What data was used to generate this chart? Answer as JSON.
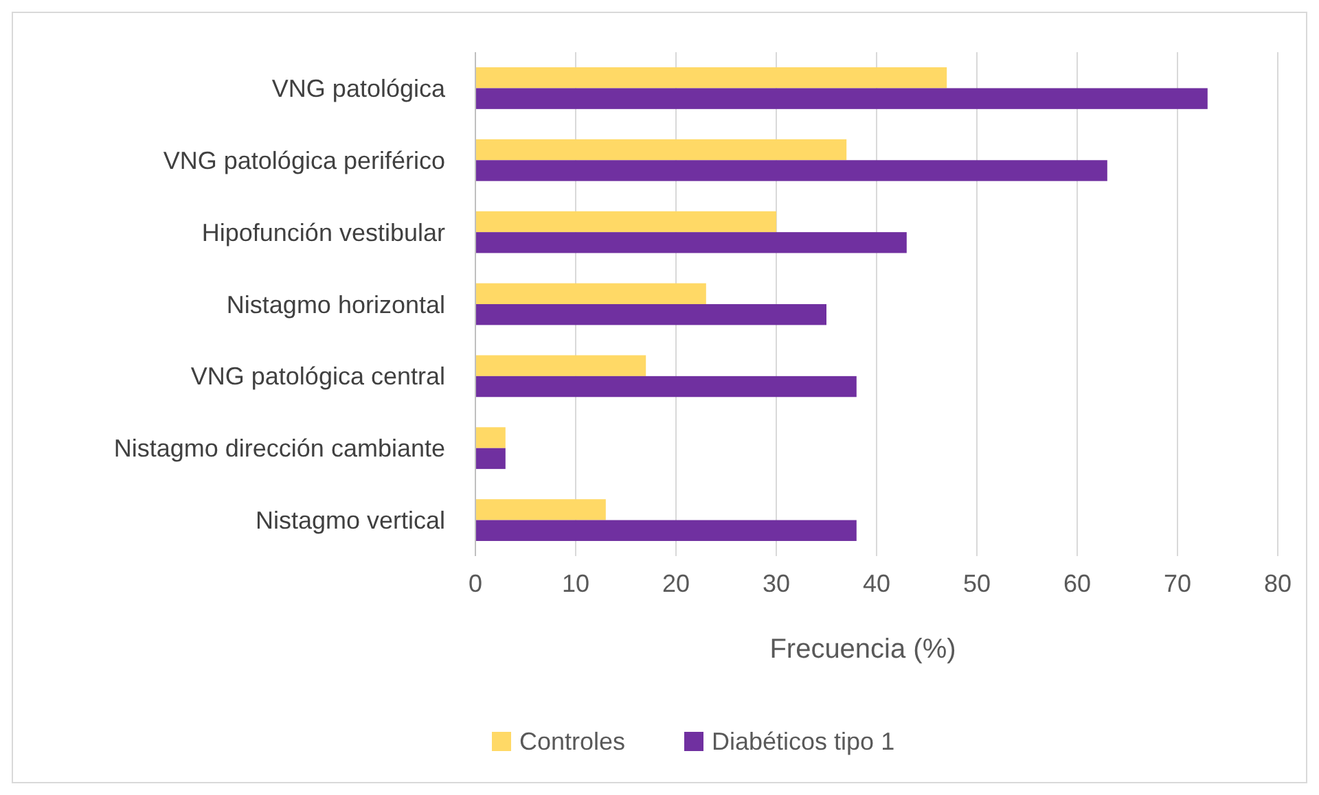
{
  "chart_data": {
    "type": "bar",
    "orientation": "horizontal",
    "xlabel": "Frecuencia (%)",
    "categories": [
      "VNG patológica",
      "VNG patológica periférico",
      "Hipofunción vestibular",
      "Nistagmo horizontal",
      "VNG patológica central",
      "Nistagmo dirección cambiante",
      "Nistagmo vertical"
    ],
    "series": [
      {
        "name": "Controles",
        "color": "#ffd966",
        "values": [
          47,
          37,
          30,
          23,
          17,
          3,
          13
        ]
      },
      {
        "name": "Diabéticos tipo 1",
        "color": "#7030a0",
        "values": [
          73,
          63,
          43,
          35,
          38,
          3,
          38
        ]
      }
    ],
    "xlim": [
      0,
      80
    ],
    "xticks": [
      0,
      10,
      20,
      30,
      40,
      50,
      60,
      70,
      80
    ],
    "grid": "x",
    "legend": "bottom"
  }
}
